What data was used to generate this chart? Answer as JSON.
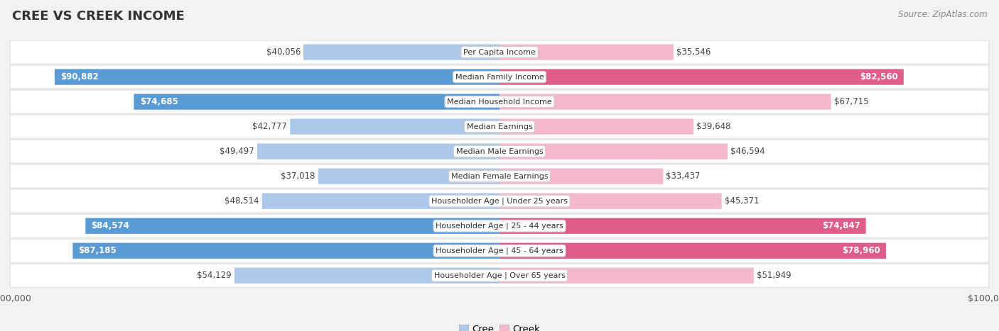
{
  "title": "CREE VS CREEK INCOME",
  "source": "Source: ZipAtlas.com",
  "categories": [
    "Per Capita Income",
    "Median Family Income",
    "Median Household Income",
    "Median Earnings",
    "Median Male Earnings",
    "Median Female Earnings",
    "Householder Age | Under 25 years",
    "Householder Age | 25 - 44 years",
    "Householder Age | 45 - 64 years",
    "Householder Age | Over 65 years"
  ],
  "cree_values": [
    40056,
    90882,
    74685,
    42777,
    49497,
    37018,
    48514,
    84574,
    87185,
    54129
  ],
  "creek_values": [
    35546,
    82560,
    67715,
    39648,
    46594,
    33437,
    45371,
    74847,
    78960,
    51949
  ],
  "max_value": 100000,
  "cree_color_light": "#adc8e8",
  "cree_color_dark": "#5b9bd5",
  "creek_color_light": "#f4b8cc",
  "creek_color_dark": "#e05c8a",
  "threshold_white_label": 68000,
  "row_bg": "#e8e8e8",
  "fig_bg": "#f2f2f2"
}
